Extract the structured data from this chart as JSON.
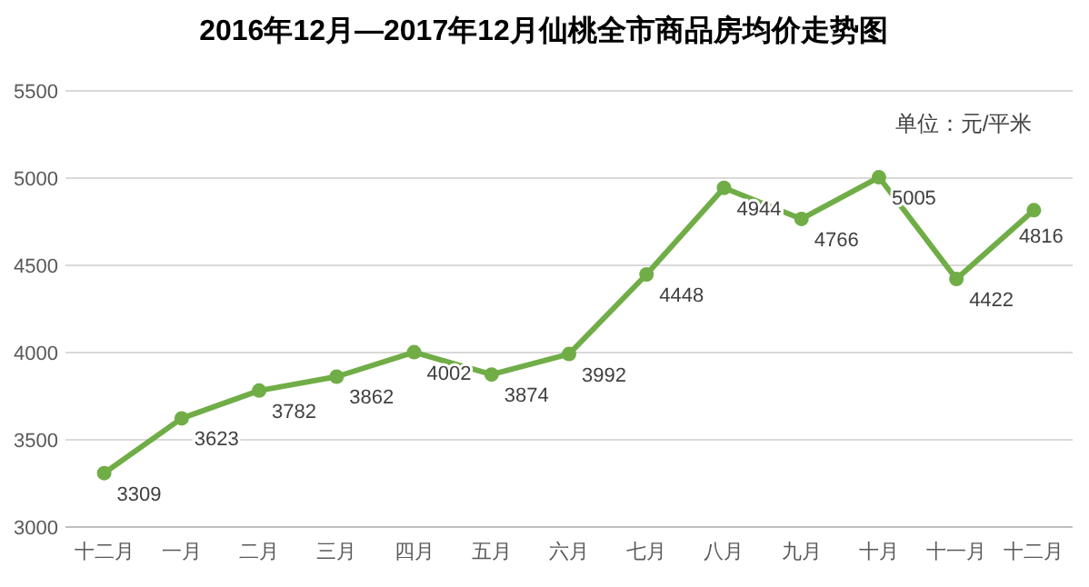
{
  "chart_data": {
    "type": "line",
    "title": "2016年12月—2017年12月仙桃全市商品房均价走势图",
    "categories": [
      "十二月",
      "一月",
      "二月",
      "三月",
      "四月",
      "五月",
      "六月",
      "七月",
      "八月",
      "九月",
      "十月",
      "十一月",
      "十二月"
    ],
    "series": [
      {
        "color": "#70ad47",
        "values": [
          3309,
          3623,
          3782,
          3862,
          4002,
          3874,
          3992,
          4448,
          4944,
          4766,
          5005,
          4422,
          4816
        ]
      }
    ],
    "ylim": [
      3000,
      5500
    ],
    "yticks": [
      3000,
      3500,
      4000,
      4500,
      5000,
      5500
    ],
    "grid": "y",
    "marker": "circle",
    "line_style": "solid",
    "data_labels": true,
    "annotations": [
      "单位：元/平米"
    ]
  }
}
